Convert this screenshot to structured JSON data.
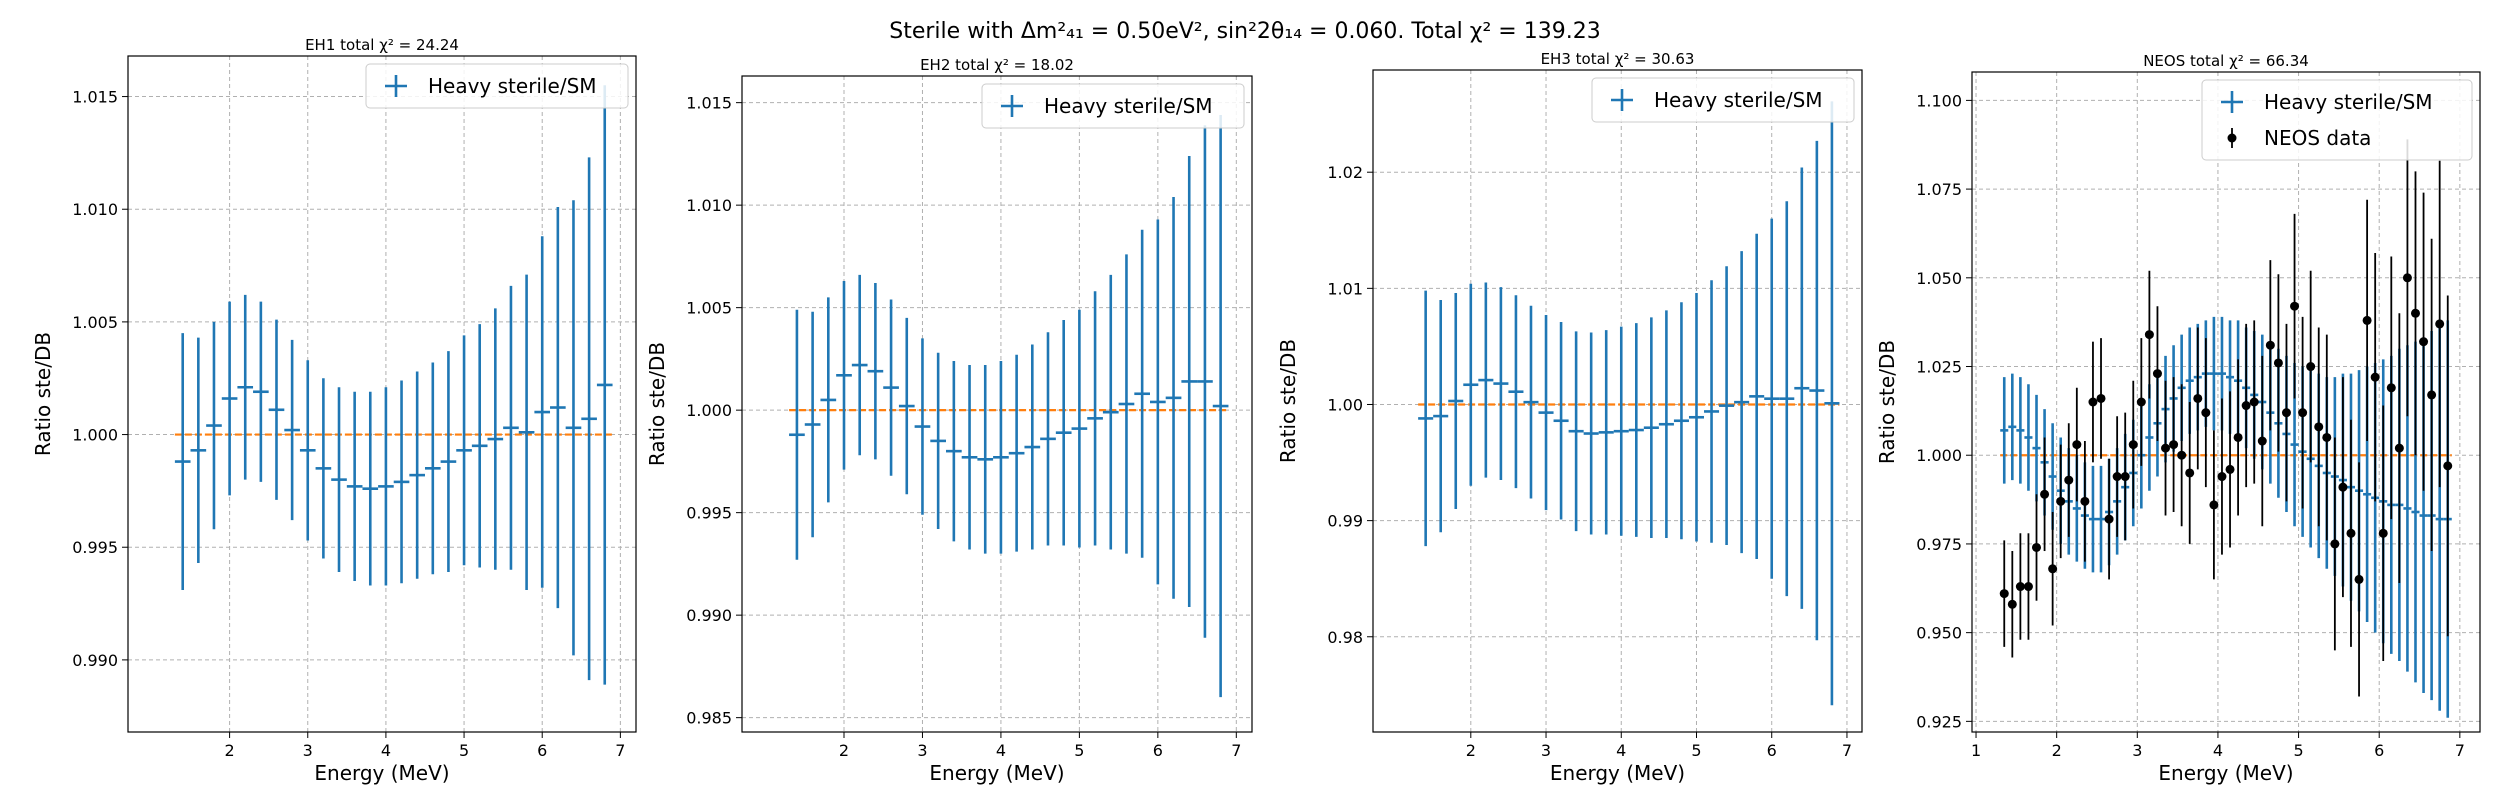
{
  "figure": {
    "title": "Sterile with Δm²₄₁ = 0.50eV², sin²2θ₁₄ = 0.060. Total χ² = 139.23"
  },
  "colors": {
    "model": "#1f77b4",
    "reference": "#ff7f0e",
    "data": "#000000"
  },
  "chart_data": [
    {
      "type": "scatter",
      "title": "EH1 total χ² = 24.24",
      "xlabel": "Energy (MeV)",
      "ylabel": "Ratio ste/DB",
      "xlim": [
        0.7,
        7.2
      ],
      "ylim": [
        0.9868,
        1.0168
      ],
      "xticks": [
        "2",
        "3",
        "4",
        "5",
        "6",
        "7"
      ],
      "yticks": [
        "0.990",
        "0.995",
        "1.000",
        "1.005",
        "1.010",
        "1.015"
      ],
      "reference_line": 1.0,
      "grid": true,
      "legend_position": "top-right",
      "series": [
        {
          "name": "Heavy sterile/SM",
          "x": [
            1.4,
            1.6,
            1.8,
            2.0,
            2.2,
            2.4,
            2.6,
            2.8,
            3.0,
            3.2,
            3.4,
            3.6,
            3.8,
            4.0,
            4.2,
            4.4,
            4.6,
            4.8,
            5.0,
            5.2,
            5.4,
            5.6,
            5.8,
            6.0,
            6.2,
            6.4,
            6.6,
            6.8
          ],
          "y": [
            0.9988,
            0.9993,
            1.0004,
            1.0016,
            1.0021,
            1.0019,
            1.0011,
            1.0002,
            0.9993,
            0.9985,
            0.998,
            0.9977,
            0.9976,
            0.9977,
            0.9979,
            0.9982,
            0.9985,
            0.9988,
            0.9993,
            0.9995,
            0.9998,
            1.0003,
            1.0001,
            1.001,
            1.0012,
            1.0003,
            1.0007,
            1.0022
          ],
          "yerr": [
            0.0057,
            0.005,
            0.0046,
            0.0043,
            0.0041,
            0.004,
            0.004,
            0.004,
            0.004,
            0.004,
            0.0041,
            0.0042,
            0.0043,
            0.0044,
            0.0045,
            0.0046,
            0.0047,
            0.0049,
            0.0051,
            0.0054,
            0.0058,
            0.0063,
            0.007,
            0.0078,
            0.0089,
            0.0101,
            0.0116,
            0.0133
          ],
          "xerr": 0.1
        }
      ]
    },
    {
      "type": "scatter",
      "title": "EH2 total χ² = 18.02",
      "xlabel": "Energy (MeV)",
      "ylabel": "Ratio ste/DB",
      "xlim": [
        0.7,
        7.2
      ],
      "ylim": [
        0.9843,
        1.0163
      ],
      "xticks": [
        "2",
        "3",
        "4",
        "5",
        "6",
        "7"
      ],
      "yticks": [
        "0.985",
        "0.990",
        "0.995",
        "1.000",
        "1.005",
        "1.010",
        "1.015"
      ],
      "reference_line": 1.0,
      "grid": true,
      "legend_position": "top-right",
      "series": [
        {
          "name": "Heavy sterile/SM",
          "x": [
            1.4,
            1.6,
            1.8,
            2.0,
            2.2,
            2.4,
            2.6,
            2.8,
            3.0,
            3.2,
            3.4,
            3.6,
            3.8,
            4.0,
            4.2,
            4.4,
            4.6,
            4.8,
            5.0,
            5.2,
            5.4,
            5.6,
            5.8,
            6.0,
            6.2,
            6.4,
            6.6,
            6.8
          ],
          "y": [
            0.9988,
            0.9993,
            1.0005,
            1.0017,
            1.0022,
            1.0019,
            1.0011,
            1.0002,
            0.9992,
            0.9985,
            0.998,
            0.9977,
            0.9976,
            0.9977,
            0.9979,
            0.9982,
            0.9986,
            0.9989,
            0.9991,
            0.9996,
            0.9999,
            1.0003,
            1.0008,
            1.0004,
            1.0006,
            1.0014,
            1.0014,
            1.0002
          ],
          "yerr": [
            0.0061,
            0.0055,
            0.005,
            0.0046,
            0.0044,
            0.0043,
            0.0043,
            0.0043,
            0.0043,
            0.0043,
            0.0044,
            0.0045,
            0.0046,
            0.0047,
            0.0048,
            0.005,
            0.0052,
            0.0055,
            0.0058,
            0.0062,
            0.0067,
            0.0073,
            0.008,
            0.0089,
            0.0098,
            0.011,
            0.0125,
            0.0142
          ],
          "xerr": 0.1
        }
      ]
    },
    {
      "type": "scatter",
      "title": "EH3 total χ² = 30.63",
      "xlabel": "Energy (MeV)",
      "ylabel": "Ratio ste/DB",
      "xlim": [
        0.7,
        7.2
      ],
      "ylim": [
        0.9718,
        1.0288
      ],
      "xticks": [
        "2",
        "3",
        "4",
        "5",
        "6",
        "7"
      ],
      "yticks": [
        "0.98",
        "0.99",
        "1.00",
        "1.01",
        "1.02"
      ],
      "reference_line": 1.0,
      "grid": true,
      "legend_position": "top-right",
      "series": [
        {
          "name": "Heavy sterile/SM",
          "x": [
            1.4,
            1.6,
            1.8,
            2.0,
            2.2,
            2.4,
            2.6,
            2.8,
            3.0,
            3.2,
            3.4,
            3.6,
            3.8,
            4.0,
            4.2,
            4.4,
            4.6,
            4.8,
            5.0,
            5.2,
            5.4,
            5.6,
            5.8,
            6.0,
            6.2,
            6.4,
            6.6,
            6.8
          ],
          "y": [
            0.9988,
            0.999,
            1.0003,
            1.0017,
            1.0021,
            1.0018,
            1.0011,
            1.0002,
            0.9993,
            0.9986,
            0.9977,
            0.9975,
            0.9976,
            0.9977,
            0.9978,
            0.998,
            0.9983,
            0.9986,
            0.9989,
            0.9994,
            0.9999,
            1.0002,
            1.0007,
            1.0005,
            1.0005,
            1.0014,
            1.0012,
            1.0001
          ],
          "yerr": [
            0.011,
            0.01,
            0.0093,
            0.0087,
            0.0084,
            0.0083,
            0.0083,
            0.0083,
            0.0084,
            0.0085,
            0.0086,
            0.0087,
            0.0088,
            0.009,
            0.0092,
            0.0095,
            0.0098,
            0.0102,
            0.0107,
            0.0113,
            0.012,
            0.013,
            0.014,
            0.0155,
            0.017,
            0.019,
            0.0215,
            0.026
          ],
          "xerr": 0.1
        }
      ]
    },
    {
      "type": "scatter",
      "title": "NEOS total χ² = 66.34",
      "xlabel": "Energy (MeV)",
      "ylabel": "Ratio ste/DB",
      "xlim": [
        0.95,
        7.25
      ],
      "ylim": [
        0.922,
        1.108
      ],
      "xticks": [
        "1",
        "2",
        "3",
        "4",
        "5",
        "6",
        "7"
      ],
      "yticks": [
        "0.925",
        "0.950",
        "0.975",
        "1.000",
        "1.025",
        "1.050",
        "1.075",
        "1.100"
      ],
      "reference_line": 1.0,
      "grid": true,
      "legend_position": "top-right",
      "series": [
        {
          "name": "Heavy sterile/SM",
          "x": [
            1.35,
            1.45,
            1.55,
            1.65,
            1.75,
            1.85,
            1.95,
            2.05,
            2.15,
            2.25,
            2.35,
            2.45,
            2.55,
            2.65,
            2.75,
            2.85,
            2.95,
            3.05,
            3.15,
            3.25,
            3.35,
            3.45,
            3.55,
            3.65,
            3.75,
            3.85,
            3.95,
            4.05,
            4.15,
            4.25,
            4.35,
            4.45,
            4.55,
            4.65,
            4.75,
            4.85,
            4.95,
            5.05,
            5.15,
            5.25,
            5.35,
            5.45,
            5.55,
            5.65,
            5.75,
            5.85,
            5.95,
            6.05,
            6.15,
            6.25,
            6.35,
            6.45,
            6.55,
            6.65,
            6.75,
            6.85
          ],
          "y": [
            1.007,
            1.008,
            1.007,
            1.005,
            1.002,
            0.998,
            0.994,
            0.99,
            0.987,
            0.985,
            0.983,
            0.982,
            0.982,
            0.984,
            0.987,
            0.991,
            0.995,
            1.0,
            1.005,
            1.009,
            1.013,
            1.016,
            1.019,
            1.021,
            1.022,
            1.023,
            1.023,
            1.023,
            1.022,
            1.021,
            1.019,
            1.017,
            1.015,
            1.012,
            1.009,
            1.006,
            1.003,
            1.001,
            0.999,
            0.997,
            0.995,
            0.994,
            0.993,
            0.991,
            0.99,
            0.989,
            0.988,
            0.987,
            0.986,
            0.986,
            0.985,
            0.984,
            0.983,
            0.983,
            0.982,
            0.982
          ],
          "yerr": [
            0.015,
            0.015,
            0.015,
            0.015,
            0.015,
            0.015,
            0.015,
            0.015,
            0.015,
            0.015,
            0.015,
            0.015,
            0.015,
            0.015,
            0.015,
            0.015,
            0.015,
            0.015,
            0.015,
            0.015,
            0.015,
            0.015,
            0.015,
            0.015,
            0.015,
            0.015,
            0.016,
            0.016,
            0.016,
            0.017,
            0.017,
            0.018,
            0.019,
            0.02,
            0.021,
            0.022,
            0.023,
            0.024,
            0.025,
            0.026,
            0.027,
            0.028,
            0.03,
            0.032,
            0.034,
            0.036,
            0.038,
            0.04,
            0.042,
            0.044,
            0.046,
            0.048,
            0.05,
            0.052,
            0.054,
            0.056
          ],
          "xerr": 0.05
        },
        {
          "name": "NEOS data",
          "marker": "point",
          "x": [
            1.35,
            1.45,
            1.55,
            1.65,
            1.75,
            1.85,
            1.95,
            2.05,
            2.15,
            2.25,
            2.35,
            2.45,
            2.55,
            2.65,
            2.75,
            2.85,
            2.95,
            3.05,
            3.15,
            3.25,
            3.35,
            3.45,
            3.55,
            3.65,
            3.75,
            3.85,
            3.95,
            4.05,
            4.15,
            4.25,
            4.35,
            4.45,
            4.55,
            4.65,
            4.75,
            4.85,
            4.95,
            5.05,
            5.15,
            5.25,
            5.35,
            5.45,
            5.55,
            5.65,
            5.75,
            5.85,
            5.95,
            6.05,
            6.15,
            6.25,
            6.35,
            6.45,
            6.55,
            6.65,
            6.75,
            6.85
          ],
          "y": [
            0.961,
            0.958,
            0.963,
            0.963,
            0.974,
            0.989,
            0.968,
            0.987,
            0.993,
            1.003,
            0.987,
            1.015,
            1.016,
            0.982,
            0.994,
            0.994,
            1.003,
            1.015,
            1.034,
            1.023,
            1.002,
            1.003,
            1.0,
            0.995,
            1.016,
            1.012,
            0.986,
            0.994,
            0.996,
            1.005,
            1.014,
            1.015,
            1.004,
            1.031,
            1.026,
            1.012,
            1.042,
            1.012,
            1.025,
            1.008,
            1.005,
            0.975,
            0.991,
            0.978,
            0.965,
            1.038,
            1.022,
            0.978,
            1.019,
            1.002,
            1.05,
            1.04,
            1.032,
            1.017,
            1.037,
            0.997
          ],
          "yerr": [
            0.015,
            0.015,
            0.015,
            0.015,
            0.015,
            0.016,
            0.016,
            0.016,
            0.016,
            0.016,
            0.017,
            0.017,
            0.017,
            0.017,
            0.017,
            0.018,
            0.018,
            0.018,
            0.018,
            0.019,
            0.019,
            0.019,
            0.02,
            0.02,
            0.02,
            0.021,
            0.021,
            0.022,
            0.022,
            0.022,
            0.023,
            0.023,
            0.024,
            0.024,
            0.025,
            0.025,
            0.026,
            0.027,
            0.027,
            0.028,
            0.029,
            0.03,
            0.031,
            0.032,
            0.033,
            0.034,
            0.035,
            0.036,
            0.037,
            0.038,
            0.039,
            0.04,
            0.042,
            0.044,
            0.046,
            0.048
          ]
        }
      ]
    }
  ]
}
